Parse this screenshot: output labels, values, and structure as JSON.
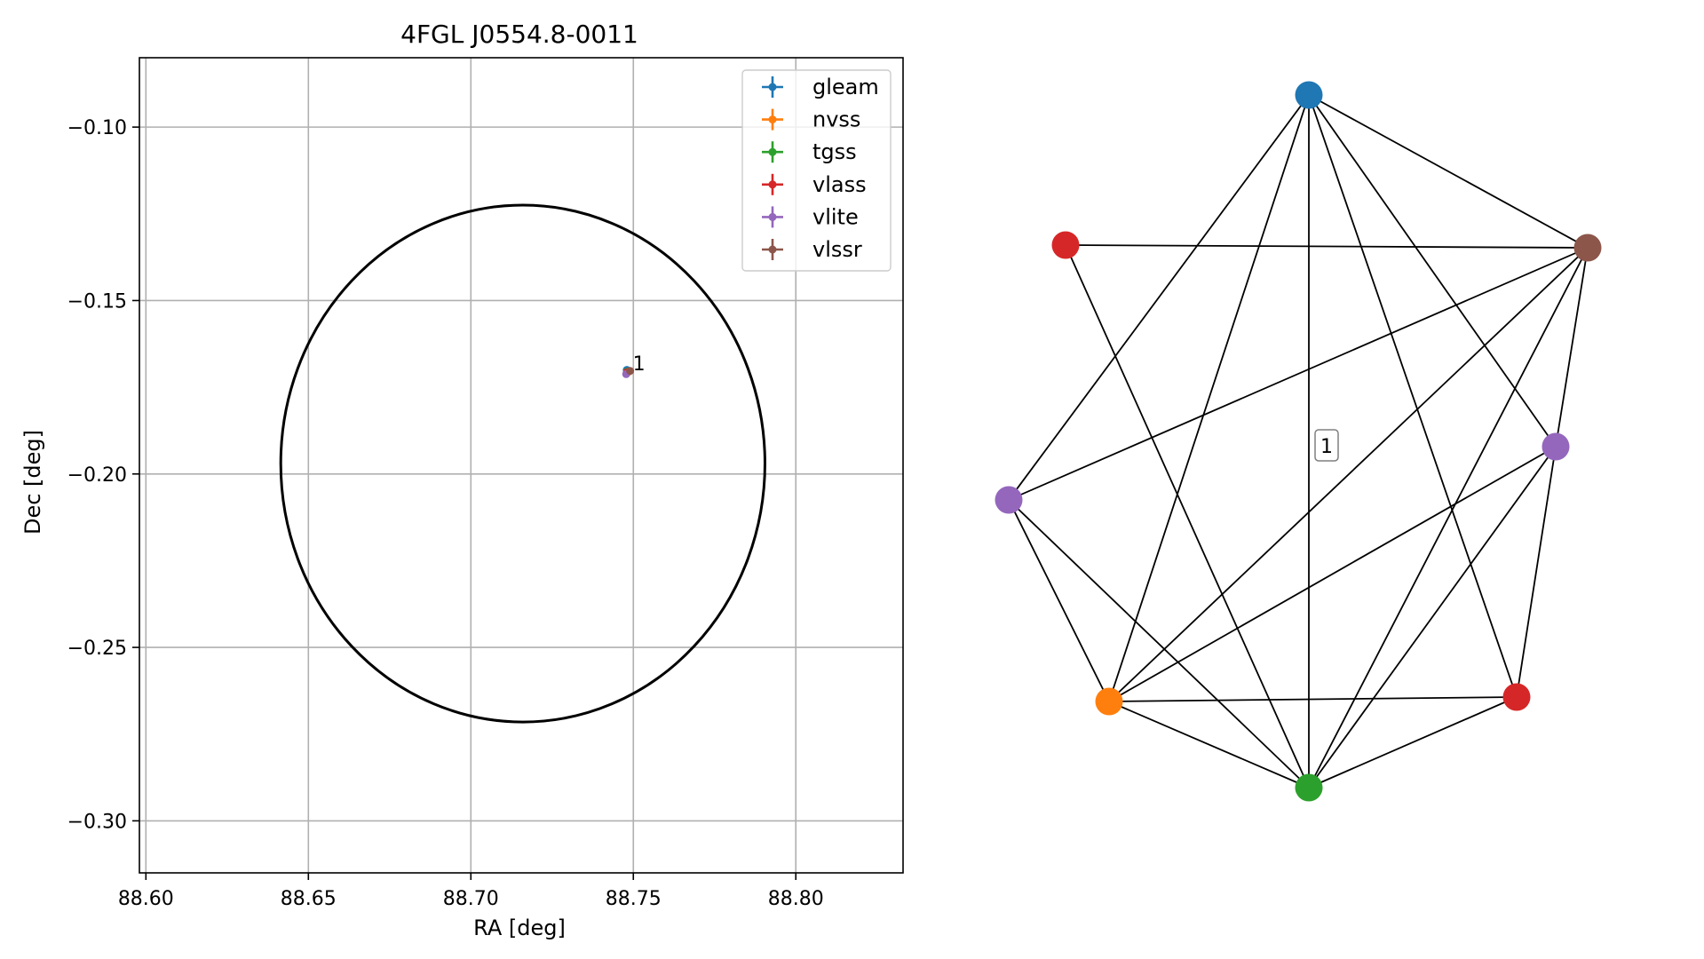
{
  "chart_data": [
    {
      "type": "scatter",
      "title": "4FGL J0554.8-0011",
      "xlabel": "RA [deg]",
      "ylabel": "Dec [deg]",
      "xlim": [
        88.598,
        88.833
      ],
      "ylim": [
        -0.315,
        -0.08
      ],
      "xticks": [
        88.6,
        88.65,
        88.7,
        88.75,
        88.8
      ],
      "xtick_labels": [
        "88.60",
        "88.65",
        "88.70",
        "88.75",
        "88.80"
      ],
      "yticks": [
        -0.1,
        -0.15,
        -0.2,
        -0.25,
        -0.3
      ],
      "ytick_labels": [
        "−0.10",
        "−0.15",
        "−0.20",
        "−0.25",
        "−0.30"
      ],
      "grid": true,
      "legend_position": "top-right",
      "ellipse": {
        "center": [
          88.716,
          -0.197
        ],
        "semi_axis_ra": 0.0745,
        "semi_axis_dec": 0.0745
      },
      "series": [
        {
          "name": "gleam",
          "color": "#1f77b4",
          "points": [
            {
              "x": 88.748,
              "y": -0.17
            }
          ]
        },
        {
          "name": "nvss",
          "color": "#ff7f0e",
          "points": [
            {
              "x": 88.7482,
              "y": -0.1708
            }
          ]
        },
        {
          "name": "tgss",
          "color": "#2ca02c",
          "points": [
            {
              "x": 88.7481,
              "y": -0.1705
            }
          ]
        },
        {
          "name": "vlass",
          "color": "#d62728",
          "points": [
            {
              "x": 88.748,
              "y": -0.1707
            }
          ]
        },
        {
          "name": "vlite",
          "color": "#9467bd",
          "points": [
            {
              "x": 88.7478,
              "y": -0.1712
            }
          ]
        },
        {
          "name": "vlssr",
          "color": "#8c564b",
          "points": [
            {
              "x": 88.749,
              "y": -0.1703
            }
          ]
        }
      ],
      "annotations": [
        {
          "text": "1",
          "x": 88.749,
          "y": -0.168
        }
      ]
    },
    {
      "type": "network",
      "nodes": [
        {
          "id": 0,
          "color": "#1f77b4"
        },
        {
          "id": 1,
          "color": "#d62728"
        },
        {
          "id": 2,
          "color": "#8c564b"
        },
        {
          "id": 3,
          "color": "#9467bd"
        },
        {
          "id": 4,
          "color": "#9467bd"
        },
        {
          "id": 5,
          "color": "#d62728"
        },
        {
          "id": 6,
          "color": "#ff7f0e"
        },
        {
          "id": 7,
          "color": "#2ca02c"
        }
      ],
      "edges": [
        [
          0,
          2
        ],
        [
          0,
          3
        ],
        [
          0,
          4
        ],
        [
          0,
          5
        ],
        [
          0,
          6
        ],
        [
          0,
          7
        ],
        [
          1,
          2
        ],
        [
          1,
          7
        ],
        [
          2,
          3
        ],
        [
          2,
          4
        ],
        [
          2,
          6
        ],
        [
          2,
          7
        ],
        [
          3,
          5
        ],
        [
          3,
          6
        ],
        [
          3,
          7
        ],
        [
          4,
          6
        ],
        [
          4,
          7
        ],
        [
          5,
          6
        ],
        [
          5,
          7
        ],
        [
          6,
          7
        ]
      ],
      "label": "1"
    }
  ]
}
